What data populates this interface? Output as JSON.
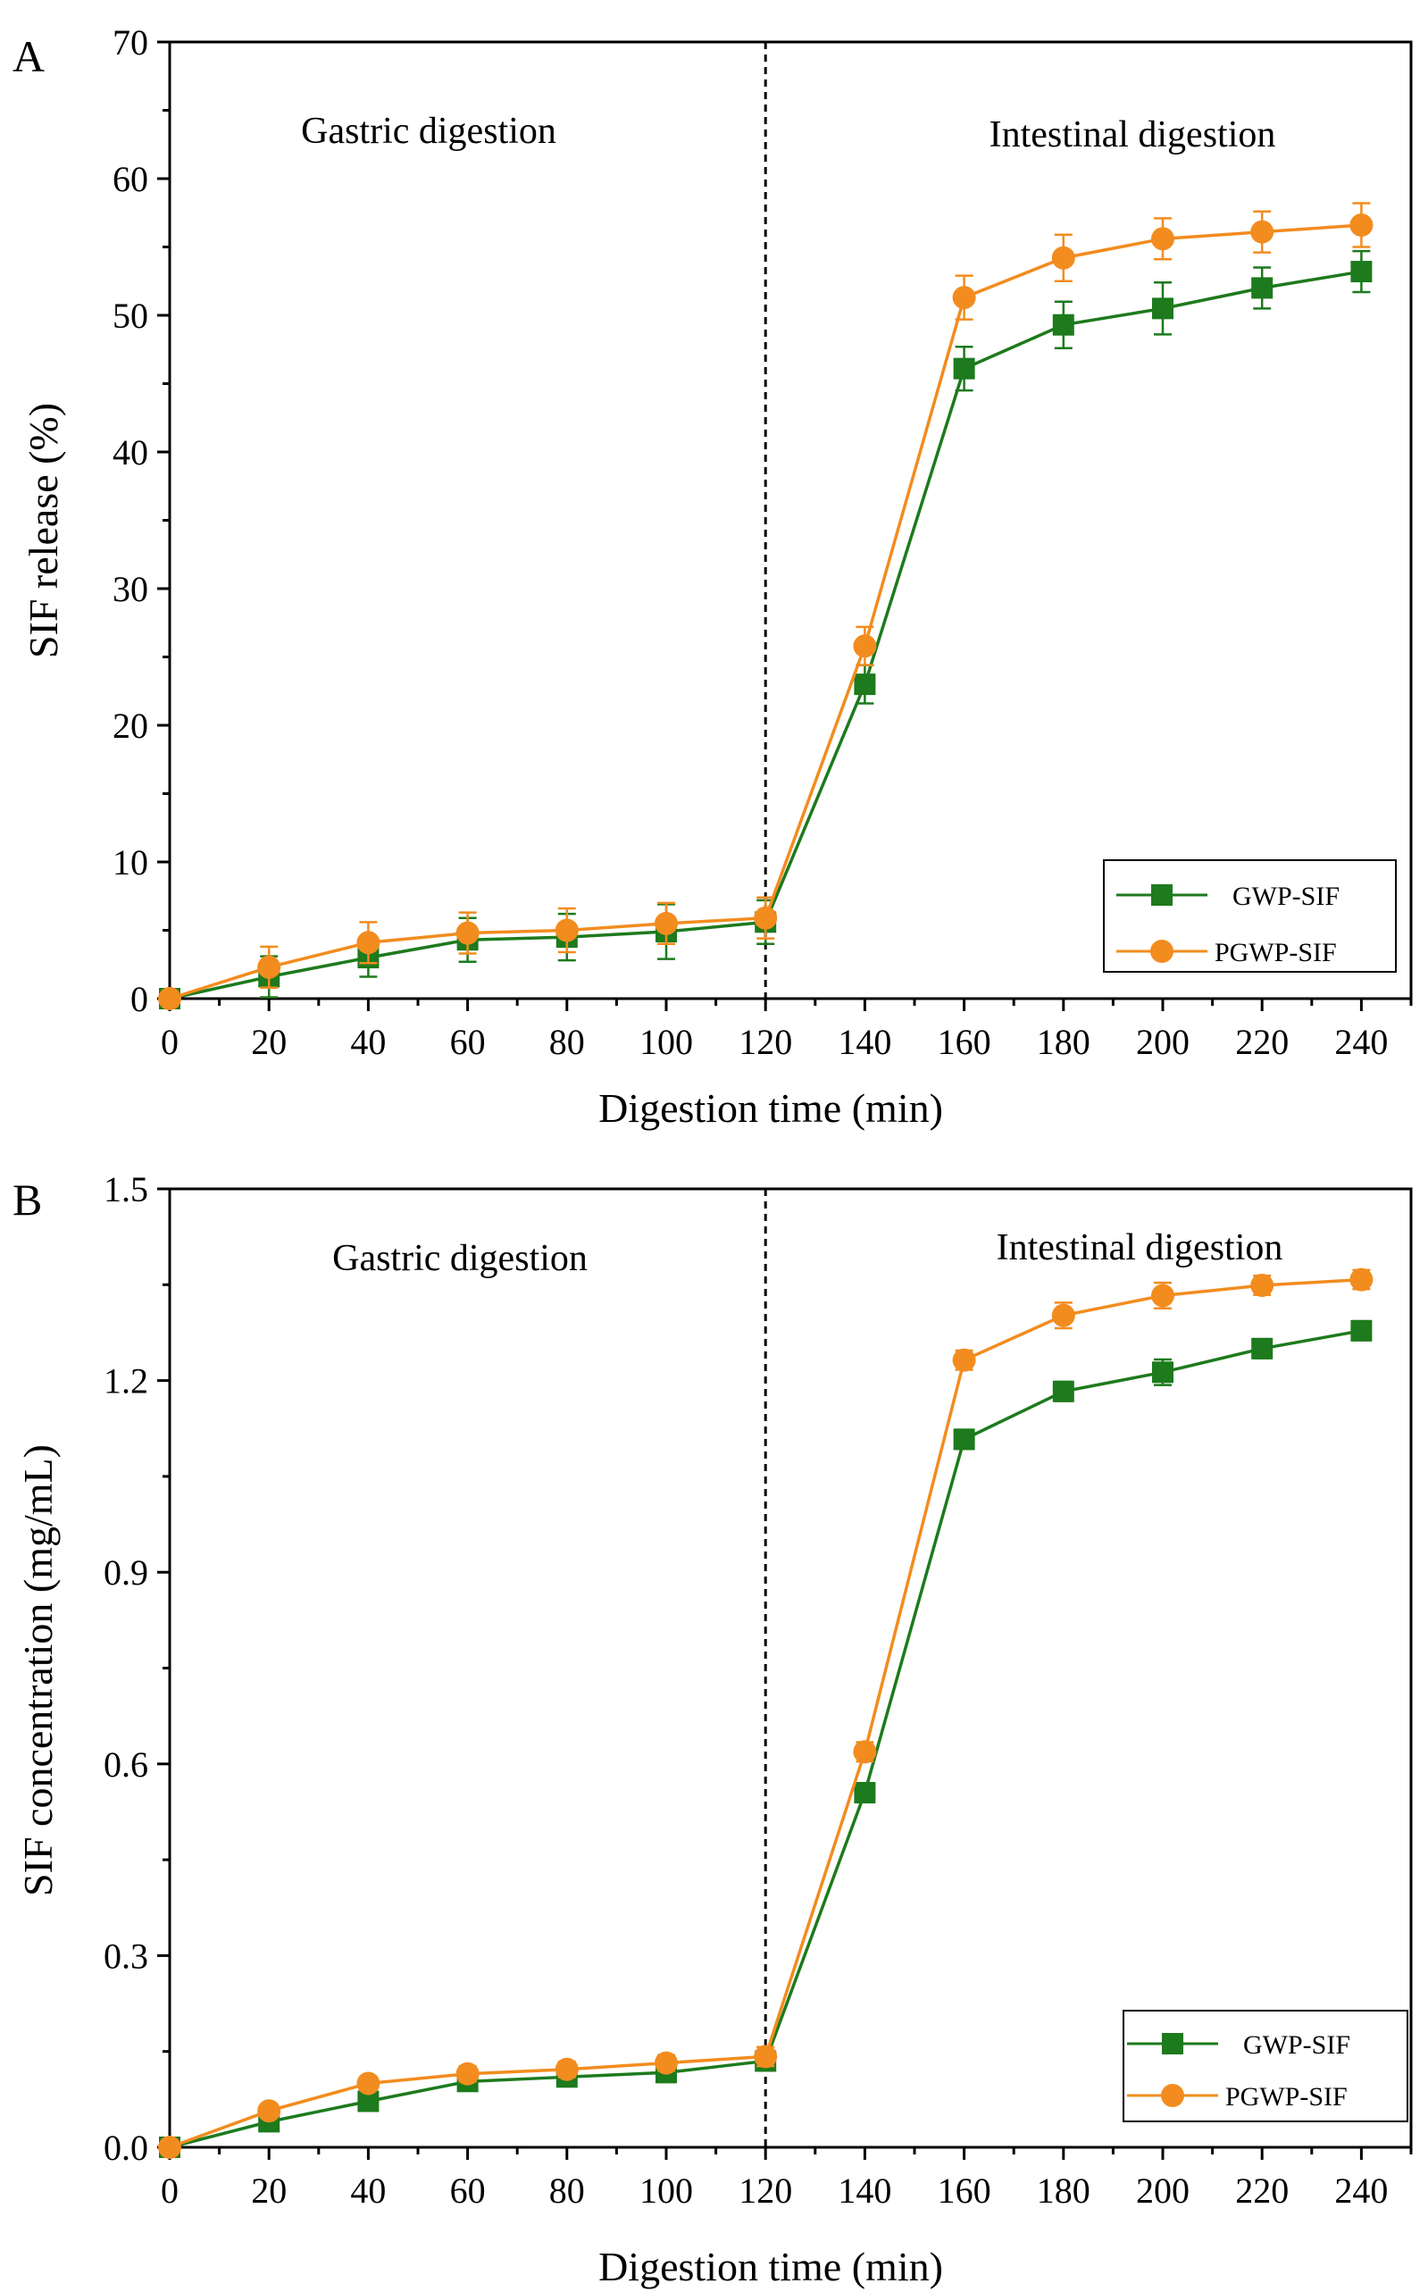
{
  "colors": {
    "gwp": "#1d7a1d",
    "pgwp": "#f28c1f",
    "axis": "#000000",
    "background": "#ffffff"
  },
  "chart_data": [
    {
      "type": "line",
      "panel": "A",
      "title": "",
      "xlabel": "Digestion time (min)",
      "ylabel": "SIF release (%)",
      "xlim": [
        0,
        250
      ],
      "ylim": [
        0,
        70
      ],
      "xticks": [
        0,
        20,
        40,
        60,
        80,
        100,
        120,
        140,
        160,
        180,
        200,
        220,
        240
      ],
      "yticks": [
        0,
        10,
        20,
        30,
        40,
        50,
        60,
        70
      ],
      "ytick_labels": [
        "0",
        "10",
        "20",
        "30",
        "40",
        "50",
        "60",
        "70"
      ],
      "divider_x": 120,
      "phase_labels": {
        "gastric": "Gastric digestion",
        "intestinal": "Intestinal digestion"
      },
      "legend_position": "bottom-right",
      "x": [
        0,
        20,
        40,
        60,
        80,
        100,
        120,
        140,
        160,
        180,
        200,
        220,
        240
      ],
      "series": [
        {
          "name": "GWP-SIF",
          "marker": "square",
          "values": [
            0,
            1.6,
            3.0,
            4.3,
            4.5,
            4.9,
            5.6,
            23.0,
            46.1,
            49.3,
            50.5,
            52.0,
            53.2
          ],
          "errors": [
            0.3,
            1.5,
            1.4,
            1.6,
            1.7,
            2.0,
            1.6,
            1.4,
            1.6,
            1.7,
            1.9,
            1.5,
            1.5
          ]
        },
        {
          "name": "PGWP-SIF",
          "marker": "circle",
          "values": [
            0,
            2.3,
            4.1,
            4.8,
            5.0,
            5.5,
            5.9,
            25.8,
            51.3,
            54.2,
            55.6,
            56.1,
            56.6
          ],
          "errors": [
            0.3,
            1.5,
            1.5,
            1.5,
            1.6,
            1.5,
            1.5,
            1.4,
            1.6,
            1.7,
            1.5,
            1.5,
            1.6
          ]
        }
      ]
    },
    {
      "type": "line",
      "panel": "B",
      "title": "",
      "xlabel": "Digestion time (min)",
      "ylabel": "SIF concentration (mg/mL)",
      "xlim": [
        0,
        250
      ],
      "ylim": [
        0,
        1.5
      ],
      "xticks": [
        0,
        20,
        40,
        60,
        80,
        100,
        120,
        140,
        160,
        180,
        200,
        220,
        240
      ],
      "yticks": [
        0,
        0.3,
        0.6,
        0.9,
        1.2,
        1.5
      ],
      "ytick_labels": [
        "0.0",
        "0.3",
        "0.6",
        "0.9",
        "1.2",
        "1.5"
      ],
      "divider_x": 120,
      "phase_labels": {
        "gastric": "Gastric digestion",
        "intestinal": "Intestinal digestion"
      },
      "legend_position": "bottom-right",
      "x": [
        0,
        20,
        40,
        60,
        80,
        100,
        120,
        140,
        160,
        180,
        200,
        220,
        240
      ],
      "series": [
        {
          "name": "GWP-SIF",
          "marker": "square",
          "values": [
            0,
            0.04,
            0.072,
            0.103,
            0.11,
            0.117,
            0.135,
            0.555,
            1.108,
            1.183,
            1.213,
            1.25,
            1.278
          ],
          "errors": [
            0.005,
            0.01,
            0.01,
            0.012,
            0.012,
            0.015,
            0.015,
            0.015,
            0.015,
            0.015,
            0.02,
            0.015,
            0.015
          ]
        },
        {
          "name": "PGWP-SIF",
          "marker": "circle",
          "values": [
            0,
            0.057,
            0.1,
            0.115,
            0.122,
            0.132,
            0.142,
            0.619,
            1.232,
            1.302,
            1.333,
            1.349,
            1.358
          ],
          "errors": [
            0.005,
            0.01,
            0.01,
            0.012,
            0.012,
            0.012,
            0.015,
            0.015,
            0.015,
            0.02,
            0.02,
            0.015,
            0.015
          ]
        }
      ]
    }
  ]
}
